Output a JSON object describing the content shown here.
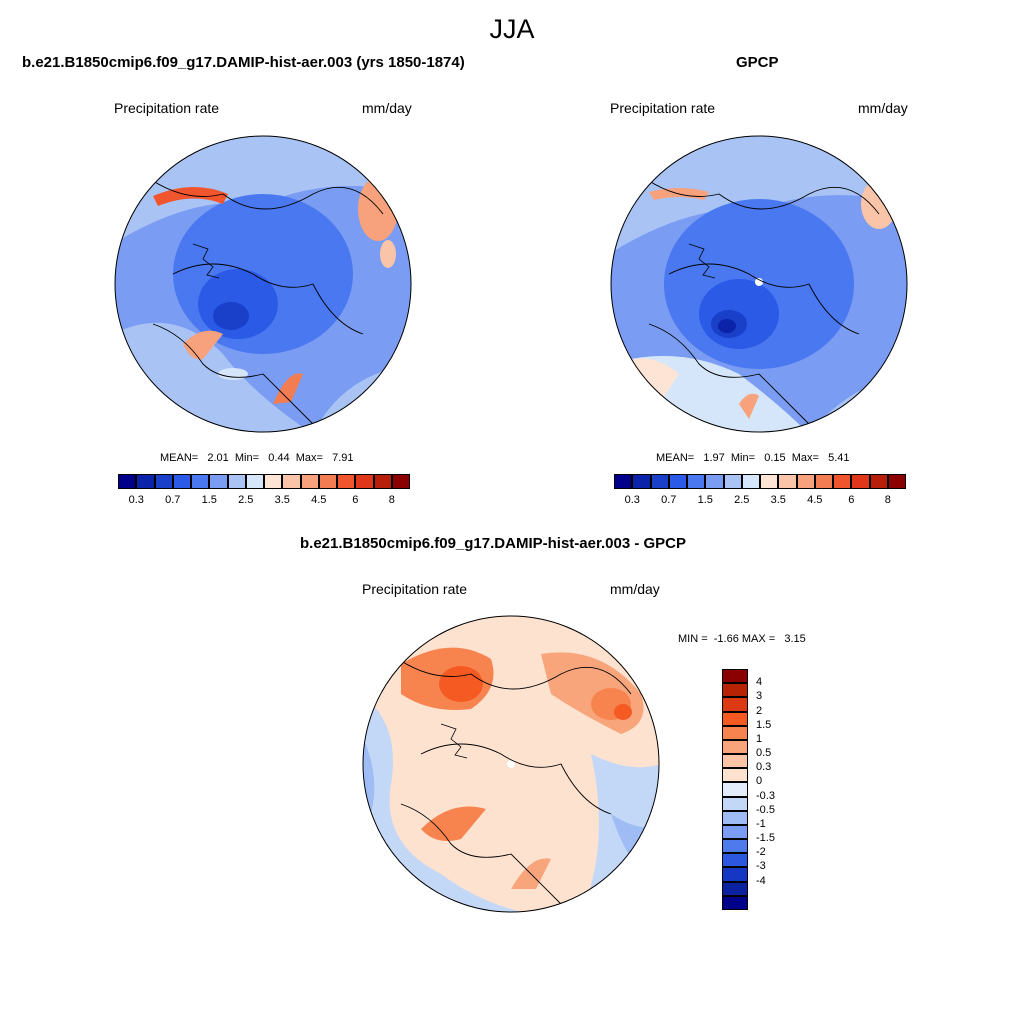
{
  "title": "JJA",
  "panels": [
    {
      "id": "model",
      "heading": "b.e21.B1850cmip6.f09_g17.DAMIP-hist-aer.003 (yrs 1850-1874)",
      "left_label": "Precipitation rate",
      "right_label": "mm/day",
      "stats_line": "MEAN=   2.01  Min=   0.44  Max=   7.91"
    },
    {
      "id": "obs",
      "heading": "GPCP",
      "left_label": "Precipitation rate",
      "right_label": "mm/day",
      "stats_line": "MEAN=   1.97  Min=   0.15  Max=   5.41"
    },
    {
      "id": "diff",
      "heading": "b.e21.B1850cmip6.f09_g17.DAMIP-hist-aer.003 - GPCP",
      "left_label": "Precipitation rate",
      "right_label": "mm/day",
      "stats_line": "MIN =  -1.66 MAX =   3.15"
    }
  ],
  "abs_colorbar": {
    "colors": [
      "#00008b",
      "#0a23a8",
      "#1a3fc8",
      "#2a5ae6",
      "#4a78f0",
      "#7a9cf2",
      "#a9c3f5",
      "#d6e6fa",
      "#fde4d4",
      "#f9c4a8",
      "#f7a27c",
      "#f47c52",
      "#f1552e",
      "#e0371a",
      "#b81f0a",
      "#8b0000"
    ],
    "tick_labels": [
      "0.3",
      "0.7",
      "1.5",
      "2.5",
      "3.5",
      "4.5",
      "6",
      "8"
    ]
  },
  "diff_colorbar": {
    "colors": [
      "#8b0000",
      "#b82306",
      "#dd3a14",
      "#f55a22",
      "#f7834e",
      "#f9a57c",
      "#fbc4a6",
      "#fde2d0",
      "#e2ecfa",
      "#c3d7f7",
      "#9fbdf4",
      "#7a9df1",
      "#4f7aeb",
      "#2c58e0",
      "#1637c4",
      "#0a21a0",
      "#00008b"
    ],
    "tick_labels": [
      "4",
      "3",
      "2",
      "1.5",
      "1",
      "0.5",
      "0.3",
      "0",
      "-0.3",
      "-0.5",
      "-1",
      "-1.5",
      "-2",
      "-3",
      "-4"
    ]
  }
}
